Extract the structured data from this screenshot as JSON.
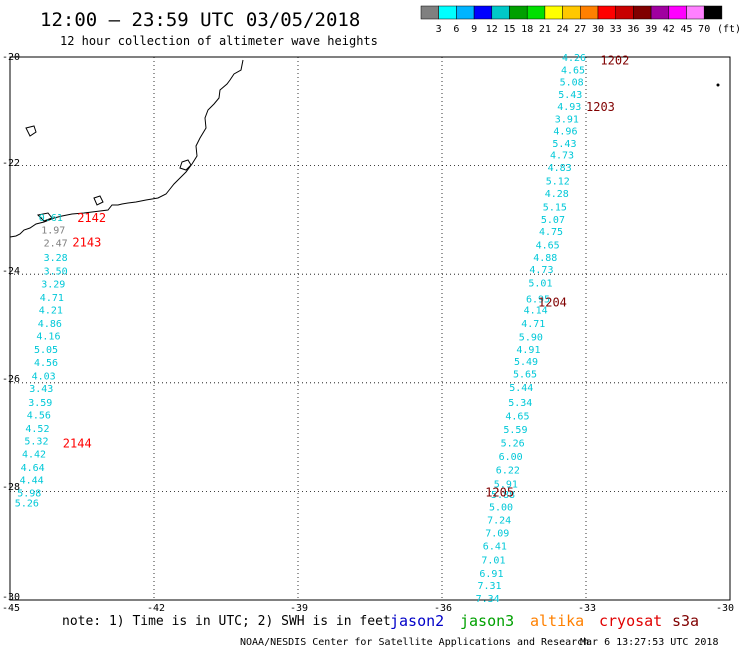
{
  "header": {
    "title": "12:00 — 23:59 UTC 03/05/2018",
    "subtitle": "12 hour collection of altimeter wave heights"
  },
  "color_scale": {
    "colors": [
      "#808080",
      "#00ffff",
      "#00b4ff",
      "#0000ff",
      "#00c8c8",
      "#00a000",
      "#00e000",
      "#ffff00",
      "#ffc800",
      "#ff8000",
      "#ff0000",
      "#c80000",
      "#800000",
      "#a000a0",
      "#ff00ff",
      "#ff80ff",
      "#000000"
    ],
    "labels": [
      "3",
      "6",
      "9",
      "12",
      "15",
      "18",
      "21",
      "24",
      "27",
      "30",
      "33",
      "36",
      "39",
      "42",
      "45",
      "70"
    ],
    "unit": "(ft)"
  },
  "axes": {
    "x_ticks": [
      "-45",
      "-42",
      "-39",
      "-36",
      "-33",
      "-30"
    ],
    "y_ticks": [
      "-20",
      "-22",
      "-24",
      "-26",
      "-28",
      "-30"
    ]
  },
  "chart_data": {
    "type": "map",
    "lon_range": [
      -45,
      -30
    ],
    "lat_range": [
      -30,
      -20
    ],
    "track_labels": [
      {
        "text": "1202",
        "lon": -32.7,
        "lat": -20.05,
        "color": "#800000"
      },
      {
        "text": "1203",
        "lon": -33.0,
        "lat": -20.9,
        "color": "#800000"
      },
      {
        "text": "1204",
        "lon": -34.0,
        "lat": -24.5,
        "color": "#800000"
      },
      {
        "text": "1205",
        "lon": -35.1,
        "lat": -28.0,
        "color": "#800000"
      },
      {
        "text": "2142",
        "lon": -43.6,
        "lat": -22.95,
        "color": "#ff0000"
      },
      {
        "text": "2143",
        "lon": -43.7,
        "lat": -23.4,
        "color": "#ff0000"
      },
      {
        "text": "2144",
        "lon": -43.9,
        "lat": -27.1,
        "color": "#ff0000"
      }
    ],
    "track_east": [
      {
        "v": "4.26",
        "lon": -33.5,
        "lat": -20.0
      },
      {
        "v": "4.65",
        "lon": -33.52,
        "lat": -20.23
      },
      {
        "v": "5.08",
        "lon": -33.55,
        "lat": -20.45
      },
      {
        "v": "5.43",
        "lon": -33.58,
        "lat": -20.68
      },
      {
        "v": "4.93",
        "lon": -33.6,
        "lat": -20.9
      },
      {
        "v": "3.91",
        "lon": -33.65,
        "lat": -21.13
      },
      {
        "v": "4.96",
        "lon": -33.68,
        "lat": -21.35
      },
      {
        "v": "5.43",
        "lon": -33.7,
        "lat": -21.58
      },
      {
        "v": "4.73",
        "lon": -33.75,
        "lat": -21.8
      },
      {
        "v": "4.83",
        "lon": -33.8,
        "lat": -22.03
      },
      {
        "v": "5.12",
        "lon": -33.84,
        "lat": -22.27
      },
      {
        "v": "4.28",
        "lon": -33.86,
        "lat": -22.5
      },
      {
        "v": "5.15",
        "lon": -33.9,
        "lat": -22.75
      },
      {
        "v": "5.07",
        "lon": -33.94,
        "lat": -22.98
      },
      {
        "v": "4.75",
        "lon": -33.98,
        "lat": -23.2
      },
      {
        "v": "4.65",
        "lon": -34.05,
        "lat": -23.45
      },
      {
        "v": "4.88",
        "lon": -34.1,
        "lat": -23.68
      },
      {
        "v": "4.73",
        "lon": -34.18,
        "lat": -23.9
      },
      {
        "v": "5.01",
        "lon": -34.2,
        "lat": -24.15
      },
      {
        "v": "6.95",
        "lon": -34.25,
        "lat": -24.45
      },
      {
        "v": "4.14",
        "lon": -34.3,
        "lat": -24.65
      },
      {
        "v": "4.71",
        "lon": -34.35,
        "lat": -24.9
      },
      {
        "v": "5.90",
        "lon": -34.4,
        "lat": -25.15
      },
      {
        "v": "4.91",
        "lon": -34.45,
        "lat": -25.38
      },
      {
        "v": "5.49",
        "lon": -34.5,
        "lat": -25.6
      },
      {
        "v": "5.65",
        "lon": -34.52,
        "lat": -25.83
      },
      {
        "v": "5.44",
        "lon": -34.6,
        "lat": -26.08
      },
      {
        "v": "5.34",
        "lon": -34.62,
        "lat": -26.35
      },
      {
        "v": "4.65",
        "lon": -34.68,
        "lat": -26.6
      },
      {
        "v": "5.59",
        "lon": -34.72,
        "lat": -26.85
      },
      {
        "v": "5.26",
        "lon": -34.78,
        "lat": -27.1
      },
      {
        "v": "6.00",
        "lon": -34.82,
        "lat": -27.35
      },
      {
        "v": "6.22",
        "lon": -34.88,
        "lat": -27.6
      },
      {
        "v": "5.91",
        "lon": -34.92,
        "lat": -27.85
      },
      {
        "v": "5.88",
        "lon": -34.98,
        "lat": -28.05
      },
      {
        "v": "5.00",
        "lon": -35.02,
        "lat": -28.28
      },
      {
        "v": "7.24",
        "lon": -35.06,
        "lat": -28.52
      },
      {
        "v": "7.09",
        "lon": -35.1,
        "lat": -28.76
      },
      {
        "v": "6.41",
        "lon": -35.15,
        "lat": -29.0
      },
      {
        "v": "7.01",
        "lon": -35.18,
        "lat": -29.25
      },
      {
        "v": "6.91",
        "lon": -35.22,
        "lat": -29.5
      },
      {
        "v": "7.31",
        "lon": -35.26,
        "lat": -29.72
      },
      {
        "v": "7.34",
        "lon": -35.3,
        "lat": -29.96
      }
    ],
    "track_west": [
      {
        "v": "0.61",
        "lon": -44.4,
        "lat": -22.95,
        "color": "#00c8c8"
      },
      {
        "v": "1.97",
        "lon": -44.35,
        "lat": -23.18,
        "color": "#808080"
      },
      {
        "v": "2.47",
        "lon": -44.3,
        "lat": -23.42,
        "color": "#808080"
      },
      {
        "v": "3.28",
        "lon": -44.3,
        "lat": -23.68
      },
      {
        "v": "3.50",
        "lon": -44.3,
        "lat": -23.93
      },
      {
        "v": "3.29",
        "lon": -44.35,
        "lat": -24.17
      },
      {
        "v": "4.71",
        "lon": -44.38,
        "lat": -24.42
      },
      {
        "v": "4.21",
        "lon": -44.4,
        "lat": -24.65
      },
      {
        "v": "4.86",
        "lon": -44.42,
        "lat": -24.9
      },
      {
        "v": "4.16",
        "lon": -44.45,
        "lat": -25.13
      },
      {
        "v": "5.05",
        "lon": -44.5,
        "lat": -25.38
      },
      {
        "v": "4.56",
        "lon": -44.5,
        "lat": -25.62
      },
      {
        "v": "4.03",
        "lon": -44.55,
        "lat": -25.87
      },
      {
        "v": "3.43",
        "lon": -44.6,
        "lat": -26.1
      },
      {
        "v": "3.59",
        "lon": -44.62,
        "lat": -26.35
      },
      {
        "v": "4.56",
        "lon": -44.65,
        "lat": -26.58
      },
      {
        "v": "4.52",
        "lon": -44.68,
        "lat": -26.83
      },
      {
        "v": "5.32",
        "lon": -44.7,
        "lat": -27.06
      },
      {
        "v": "4.42",
        "lon": -44.75,
        "lat": -27.3
      },
      {
        "v": "4.64",
        "lon": -44.78,
        "lat": -27.55
      },
      {
        "v": "4.44",
        "lon": -44.8,
        "lat": -27.78
      },
      {
        "v": "5.98",
        "lon": -44.85,
        "lat": -28.02
      },
      {
        "v": "5.26",
        "lon": -44.9,
        "lat": -28.2
      }
    ]
  },
  "footer": {
    "note": "note: 1) Time is in UTC; 2) SWH is in feet",
    "legend": [
      {
        "name": "jason2",
        "color": "#0000c8"
      },
      {
        "name": "jason3",
        "color": "#00a000"
      },
      {
        "name": "altika",
        "color": "#ff8000"
      },
      {
        "name": "cryosat",
        "color": "#e00000"
      },
      {
        "name": "s3a",
        "color": "#800000"
      }
    ],
    "credit": "NOAA/NESDIS Center for Satellite Applications and Research",
    "timestamp": "Mar  6 13:27:53 UTC 2018"
  }
}
